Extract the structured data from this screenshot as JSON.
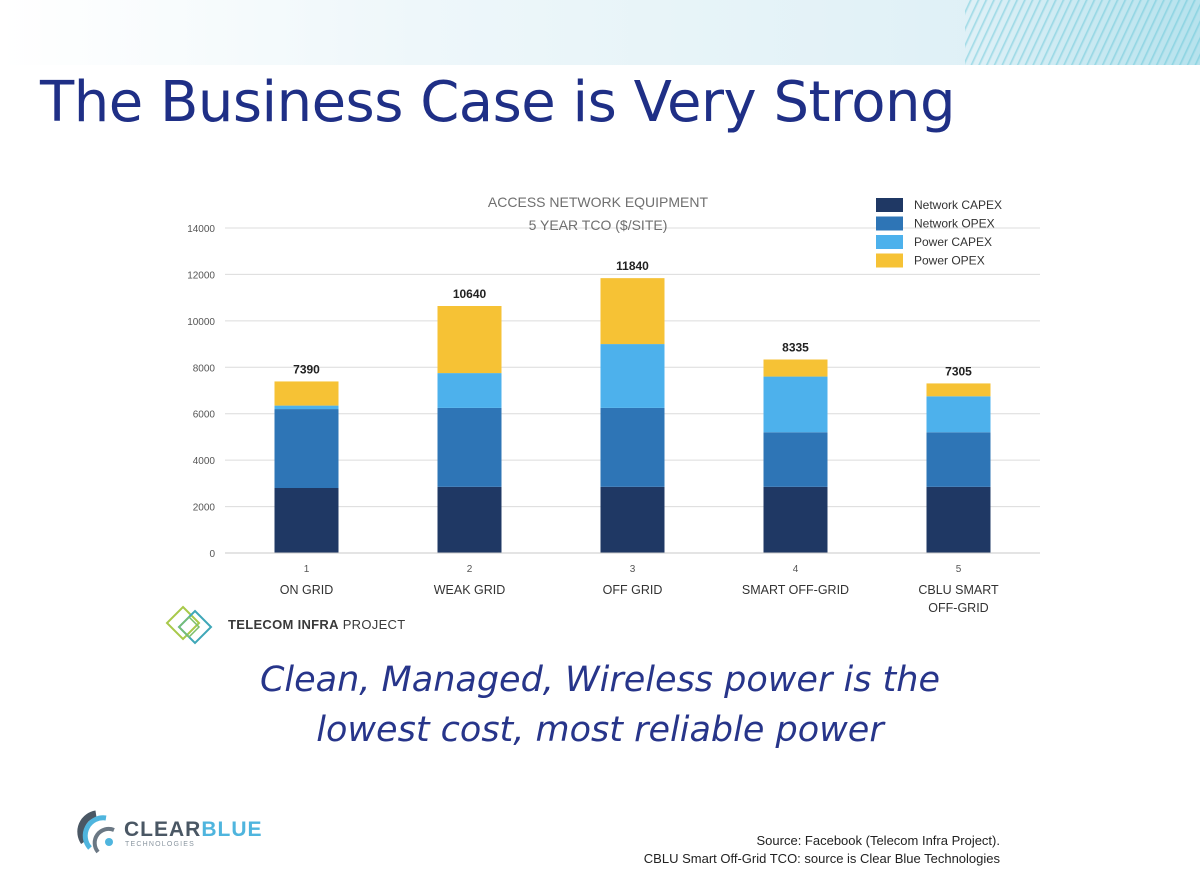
{
  "slide": {
    "title": "The Business Case is Very Strong",
    "tagline_line1": "Clean, Managed, Wireless power is the",
    "tagline_line2": "lowest cost, most reliable power"
  },
  "tip_logo": {
    "name_bold": "TELECOM INFRA",
    "name_regular": " PROJECT",
    "icon": "tip-diamond-logo-icon"
  },
  "company_logo": {
    "name_part1": "CLEAR",
    "name_part2": "BLUE",
    "subtitle": "TECHNOLOGIES",
    "icon": "clearblue-logo-icon"
  },
  "source": {
    "line1": "Source: Facebook (Telecom Infra Project).",
    "line2": "CBLU Smart Off-Grid TCO: source is Clear Blue Technologies"
  },
  "chart_data": {
    "type": "bar",
    "stacked": true,
    "title_line1": "ACCESS NETWORK EQUIPMENT",
    "title_line2": "5 YEAR TCO ($/SITE)",
    "xlabel": "",
    "ylabel": "",
    "ylim": [
      0,
      14000
    ],
    "yticks": [
      0,
      2000,
      4000,
      6000,
      8000,
      10000,
      12000,
      14000
    ],
    "grid": true,
    "legend_position": "top-right",
    "categories": [
      {
        "number": "1",
        "label": [
          "ON GRID"
        ]
      },
      {
        "number": "2",
        "label": [
          "WEAK GRID"
        ]
      },
      {
        "number": "3",
        "label": [
          "OFF GRID"
        ]
      },
      {
        "number": "4",
        "label": [
          "SMART OFF-GRID"
        ]
      },
      {
        "number": "5",
        "label": [
          "CBLU SMART",
          "OFF-GRID"
        ]
      }
    ],
    "series": [
      {
        "name": "Network CAPEX",
        "color": "#1f3864",
        "values": [
          2800,
          2850,
          2850,
          2850,
          2850
        ]
      },
      {
        "name": "Network OPEX",
        "color": "#2e75b6",
        "values": [
          3400,
          3400,
          3400,
          2350,
          2350
        ]
      },
      {
        "name": "Power CAPEX",
        "color": "#4db1ec",
        "values": [
          150,
          1500,
          2750,
          2400,
          1550
        ]
      },
      {
        "name": "Power OPEX",
        "color": "#f6c235",
        "values": [
          1040,
          2890,
          2840,
          735,
          555
        ]
      }
    ],
    "totals": [
      "7390",
      "10640",
      "11840",
      "8335",
      "7305"
    ]
  }
}
